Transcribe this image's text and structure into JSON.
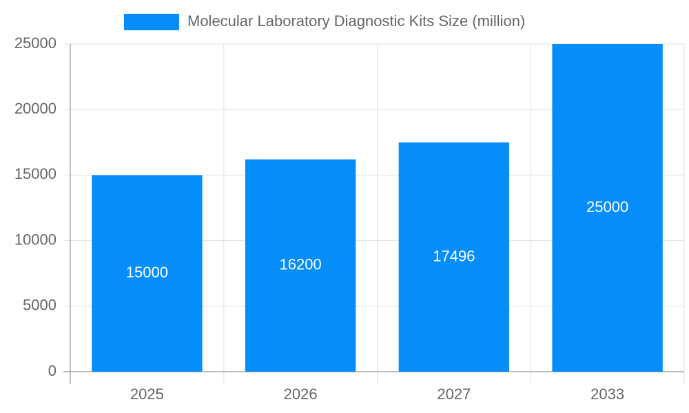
{
  "chart_data": {
    "type": "bar",
    "categories": [
      "2025",
      "2026",
      "2027",
      "2033"
    ],
    "series": [
      {
        "name": "Molecular Laboratory Diagnostic Kits Size (million)",
        "color": "#058dfa",
        "values": [
          15000,
          16200,
          17496,
          25000
        ]
      }
    ],
    "ylim": [
      0,
      25000
    ],
    "yticks": [
      0,
      5000,
      10000,
      15000,
      20000,
      25000
    ],
    "grid": true,
    "legend": "top"
  }
}
